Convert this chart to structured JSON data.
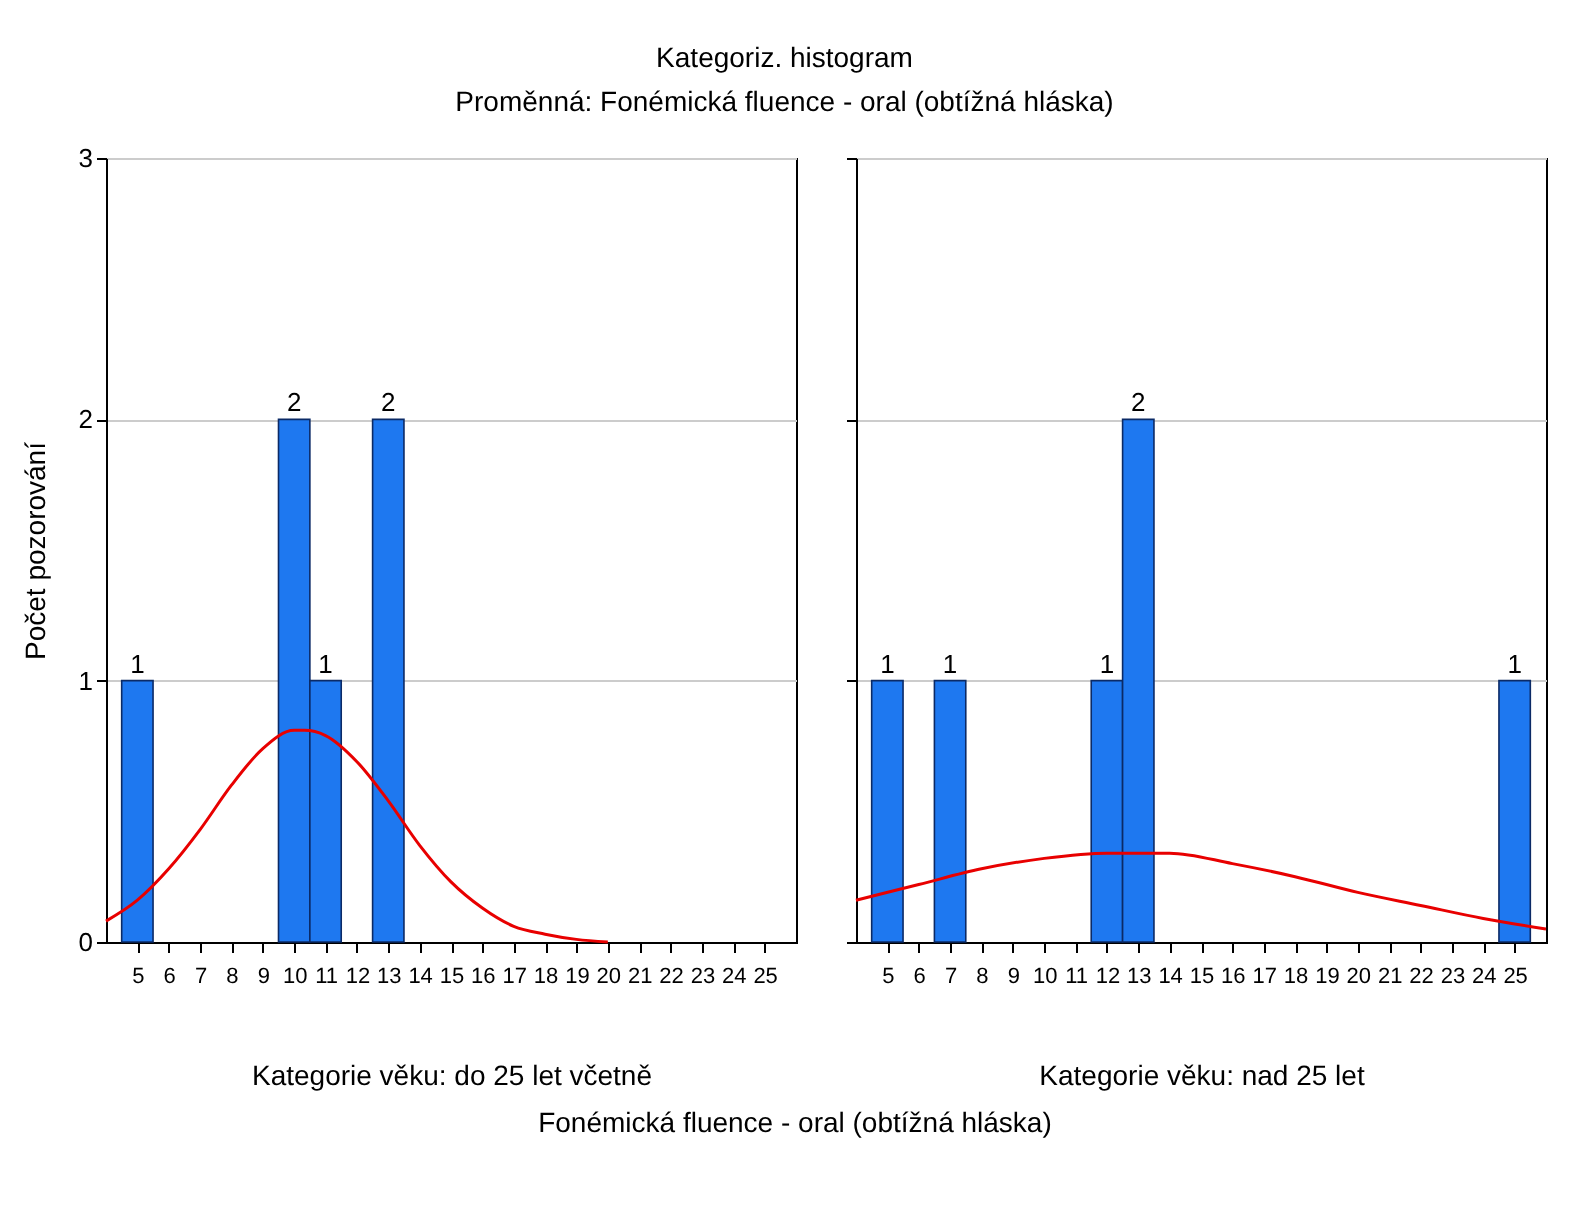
{
  "chart_data": [
    {
      "type": "histogram",
      "title": "Kategoriz. histogram",
      "subtitle": "Proměnná: Fonémická fluence - oral (obtížná hláska)",
      "xlabel": "Kategorie věku: do 25 let včetně",
      "ylabel": "Počet pozorování",
      "annotations": [
        "Fonémická fluence - oral (obtížná hláska)"
      ],
      "bins": [
        4.5,
        5.5,
        6.5,
        7.5,
        8.5,
        9.5,
        10.5,
        11.5,
        12.5,
        13.5,
        14.5,
        15.5,
        16.5,
        17.5,
        18.5,
        19.5,
        20.5,
        21.5,
        22.5,
        23.5,
        24.5,
        25.5
      ],
      "xlim": [
        4,
        26
      ],
      "xticks": [
        5,
        6,
        7,
        8,
        9,
        10,
        11,
        12,
        13,
        14,
        15,
        16,
        17,
        18,
        19,
        20,
        21,
        22,
        23,
        24,
        25
      ],
      "ylim": [
        0,
        3
      ],
      "yticks": [
        0,
        1,
        2,
        3
      ],
      "grid": "y",
      "series": [
        {
          "color": "#1e78f0",
          "values": [
            1,
            0,
            0,
            0,
            0,
            2,
            1,
            0,
            2,
            0,
            0,
            0,
            0,
            0,
            0,
            0,
            0,
            0,
            0,
            0,
            0
          ],
          "value_labels": [
            "1",
            null,
            null,
            null,
            null,
            "2",
            "1",
            null,
            "2",
            null,
            null,
            null,
            null,
            null,
            null,
            null,
            null,
            null,
            null,
            null,
            null
          ]
        },
        {
          "type": "line",
          "color": "#e80000",
          "x": [
            4,
            5,
            6,
            7,
            8,
            9,
            10,
            10.33,
            11,
            12,
            13,
            14,
            15,
            16,
            17,
            18,
            19,
            20
          ],
          "values": [
            0.08,
            0.16,
            0.28,
            0.43,
            0.6,
            0.74,
            0.81,
            0.81,
            0.79,
            0.69,
            0.54,
            0.37,
            0.23,
            0.13,
            0.06,
            0.03,
            0.01,
            0
          ]
        }
      ]
    },
    {
      "type": "histogram",
      "xlabel": "Kategorie věku: nad 25 let",
      "tick_labels": "x",
      "bins": [
        4.5,
        5.5,
        6.5,
        7.5,
        8.5,
        9.5,
        10.5,
        11.5,
        12.5,
        13.5,
        14.5,
        15.5,
        16.5,
        17.5,
        18.5,
        19.5,
        20.5,
        21.5,
        22.5,
        23.5,
        24.5,
        25.5
      ],
      "xlim": [
        4,
        26
      ],
      "xticks": [
        5,
        6,
        7,
        8,
        9,
        10,
        11,
        12,
        13,
        14,
        15,
        16,
        17,
        18,
        19,
        20,
        21,
        22,
        23,
        24,
        25
      ],
      "ylim": [
        0,
        3
      ],
      "yticks": [
        0,
        1,
        2,
        3
      ],
      "grid": "y",
      "series": [
        {
          "color": "#1e78f0",
          "values": [
            1,
            0,
            1,
            0,
            0,
            0,
            0,
            1,
            2,
            0,
            0,
            0,
            0,
            0,
            0,
            0,
            0,
            0,
            0,
            0,
            1
          ],
          "value_labels": [
            "1",
            null,
            "1",
            null,
            null,
            null,
            null,
            "1",
            "2",
            null,
            null,
            null,
            null,
            null,
            null,
            null,
            null,
            null,
            null,
            null,
            "1"
          ]
        },
        {
          "type": "line",
          "color": "#e80000",
          "x": [
            4,
            6,
            8,
            10,
            12,
            12.5,
            14,
            16,
            18,
            20,
            22,
            24,
            26
          ],
          "values": [
            0.16,
            0.22,
            0.28,
            0.32,
            0.34,
            0.34,
            0.34,
            0.3,
            0.25,
            0.19,
            0.14,
            0.09,
            0.05
          ]
        }
      ]
    }
  ]
}
